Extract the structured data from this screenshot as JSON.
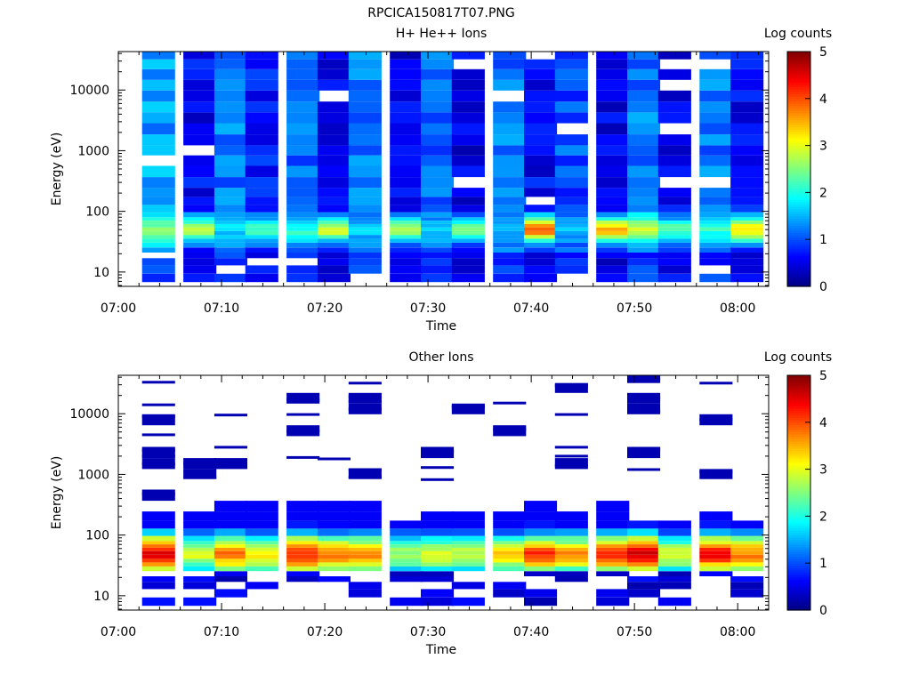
{
  "figure": {
    "title": "RPCICA150817T07.PNG"
  },
  "chart_data": [
    {
      "type": "heatmap",
      "title": "H+ He++ Ions",
      "xlabel": "Time",
      "ylabel": "Energy (eV)",
      "yscale": "log",
      "ylim": [
        5.8,
        43000
      ],
      "xlim": [
        "07:00",
        "08:03"
      ],
      "x_ticks": [
        "07:00",
        "07:10",
        "07:20",
        "07:30",
        "07:40",
        "07:50",
        "08:00"
      ],
      "y_ticks": [
        "10",
        "100",
        "1000",
        "10000"
      ],
      "colorbar": {
        "label": "Log counts",
        "range": [
          0,
          5
        ],
        "ticks": [
          "0",
          "1",
          "2",
          "3",
          "4",
          "5"
        ]
      },
      "time_bins": [
        "07:02",
        "07:06",
        "07:09",
        "07:12",
        "07:16",
        "07:19",
        "07:22",
        "07:26",
        "07:29",
        "07:32",
        "07:36",
        "07:39",
        "07:42",
        "07:46",
        "07:49",
        "07:52",
        "07:56",
        "07:59"
      ],
      "energy_bins": [
        8,
        11,
        15,
        19,
        23,
        28,
        33,
        38,
        44,
        51,
        58,
        66,
        75,
        85,
        110,
        150,
        200,
        300,
        450,
        700,
        1000,
        1500,
        2300,
        3500,
        5200,
        8000,
        12000,
        18000,
        27000,
        38000
      ],
      "background_levels": [
        1.4,
        0.6,
        1.2,
        0.7,
        1.1,
        0.6,
        1.2,
        0.5,
        1.1,
        0.5,
        1.2,
        0.6,
        1.0,
        0.5,
        1.2,
        0.6,
        1.2,
        0.6
      ],
      "peak_levels": [
        2.6,
        2.8,
        1.7,
        2.3,
        2.1,
        2.9,
        1.6,
        2.8,
        1.6,
        2.6,
        1.4,
        3.8,
        1.6,
        3.5,
        2.8,
        2.3,
        2.1,
        3.3
      ]
    },
    {
      "type": "heatmap",
      "title": "Other Ions",
      "xlabel": "Time",
      "ylabel": "Energy (eV)",
      "yscale": "log",
      "ylim": [
        5.8,
        43000
      ],
      "xlim": [
        "07:00",
        "08:03"
      ],
      "x_ticks": [
        "07:00",
        "07:10",
        "07:20",
        "07:30",
        "07:40",
        "07:50",
        "08:00"
      ],
      "y_ticks": [
        "10",
        "100",
        "1000",
        "10000"
      ],
      "colorbar": {
        "label": "Log counts",
        "range": [
          0,
          5
        ],
        "ticks": [
          "0",
          "1",
          "2",
          "3",
          "4",
          "5"
        ]
      },
      "time_bins": [
        "07:02",
        "07:06",
        "07:09",
        "07:12",
        "07:16",
        "07:19",
        "07:22",
        "07:26",
        "07:29",
        "07:32",
        "07:36",
        "07:39",
        "07:42",
        "07:46",
        "07:49",
        "07:52",
        "07:56",
        "07:59"
      ],
      "energy_bins": [
        8,
        11,
        15,
        19,
        23,
        28,
        33,
        38,
        44,
        51,
        58,
        66,
        75,
        85,
        110,
        150,
        200,
        300,
        450,
        700,
        1000,
        1500,
        2300,
        3500,
        5200,
        8000,
        12000,
        18000,
        27000,
        38000
      ],
      "peak_levels": [
        4.6,
        2.9,
        3.8,
        3.3,
        4.3,
        3.9,
        3.7,
        2.7,
        3.0,
        2.8,
        3.3,
        4.1,
        3.6,
        4.2,
        4.6,
        3.0,
        4.3,
        3.8
      ],
      "band_top_energy": [
        210,
        260,
        430,
        380,
        300,
        340,
        440,
        190,
        230,
        260,
        270,
        330,
        220,
        420,
        190,
        170,
        230,
        170
      ],
      "high_energy_traces": [
        [
          33000,
          14000,
          9000,
          4500,
          2500,
          2000,
          1500,
          480
        ],
        [
          1500,
          900
        ],
        [
          9500,
          2800,
          1550
        ],
        [],
        [
          17000,
          9700,
          5200,
          1900
        ],
        [
          1800
        ],
        [
          32000,
          19000,
          16000,
          12000,
          1200,
          900
        ],
        [],
        [
          2400,
          1300,
          820
        ],
        [
          13000
        ],
        [
          15000,
          5500
        ],
        [],
        [
          29000,
          9700,
          2800,
          2000,
          1400
        ],
        [],
        [
          38000,
          18000,
          11000,
          2600,
          1200
        ],
        [],
        [
          32000,
          8000,
          1100
        ],
        []
      ]
    }
  ]
}
